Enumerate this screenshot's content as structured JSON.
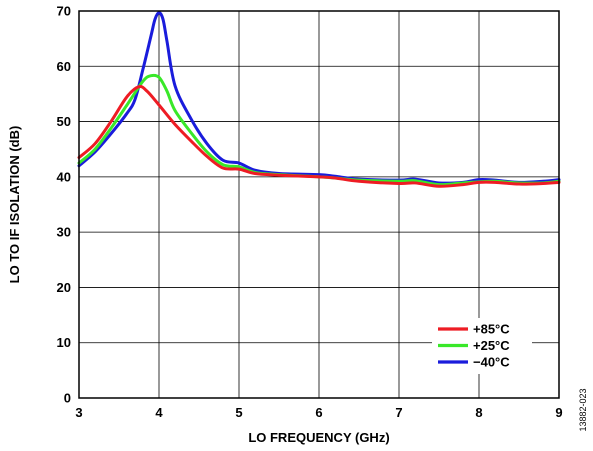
{
  "chart_data": {
    "type": "line",
    "title": "",
    "xlabel": "LO FREQUENCY (GHz)",
    "ylabel": "LO TO IF ISOLATION (dB)",
    "xlim": [
      3,
      9
    ],
    "ylim": [
      0,
      70
    ],
    "xticks": [
      "3",
      "4",
      "5",
      "6",
      "7",
      "8",
      "9"
    ],
    "yticks": [
      "0",
      "10",
      "20",
      "30",
      "40",
      "50",
      "60",
      "70"
    ],
    "grid": true,
    "legend_position": "bottom-right",
    "series": [
      {
        "name": "+85°C",
        "color": "#ee1c24",
        "x": [
          3.0,
          3.2,
          3.4,
          3.6,
          3.75,
          3.85,
          4.0,
          4.2,
          4.4,
          4.6,
          4.8,
          5.0,
          5.2,
          5.5,
          6.0,
          6.2,
          6.5,
          7.0,
          7.2,
          7.5,
          7.8,
          8.0,
          8.2,
          8.5,
          8.8,
          9.0
        ],
        "y": [
          43.5,
          46.0,
          50.0,
          54.5,
          56.3,
          55.5,
          53.0,
          49.5,
          46.5,
          43.7,
          41.6,
          41.4,
          40.6,
          40.3,
          40.0,
          39.8,
          39.2,
          38.8,
          38.9,
          38.3,
          38.6,
          39.0,
          39.0,
          38.7,
          38.8,
          39.0
        ]
      },
      {
        "name": "+25°C",
        "color": "#39e829",
        "x": [
          3.0,
          3.2,
          3.4,
          3.6,
          3.8,
          3.9,
          4.0,
          4.1,
          4.2,
          4.4,
          4.6,
          4.8,
          5.0,
          5.2,
          5.5,
          6.0,
          6.2,
          6.5,
          7.0,
          7.2,
          7.5,
          7.8,
          8.0,
          8.2,
          8.5,
          8.8,
          9.0
        ],
        "y": [
          42.5,
          45.0,
          48.8,
          53.0,
          57.3,
          58.3,
          58.0,
          55.5,
          52.0,
          48.0,
          44.5,
          42.2,
          41.8,
          40.8,
          40.4,
          40.0,
          39.8,
          39.4,
          39.2,
          39.3,
          38.6,
          38.9,
          39.1,
          39.2,
          38.9,
          38.9,
          39.2
        ]
      },
      {
        "name": "−40°C",
        "color": "#1a1cdc",
        "x": [
          3.0,
          3.2,
          3.4,
          3.6,
          3.7,
          3.8,
          3.9,
          3.95,
          4.0,
          4.05,
          4.1,
          4.2,
          4.4,
          4.6,
          4.8,
          5.0,
          5.2,
          5.5,
          6.0,
          6.2,
          6.5,
          7.0,
          7.2,
          7.5,
          7.8,
          8.0,
          8.2,
          8.5,
          8.8,
          9.0
        ],
        "y": [
          42.0,
          44.5,
          47.8,
          51.5,
          54.0,
          59.5,
          65.5,
          68.5,
          69.7,
          68.5,
          64.5,
          56.5,
          50.5,
          46.0,
          43.0,
          42.5,
          41.2,
          40.6,
          40.4,
          40.1,
          39.6,
          39.4,
          39.6,
          38.9,
          39.0,
          39.5,
          39.4,
          39.0,
          39.2,
          39.5
        ]
      }
    ]
  },
  "figure_id": "13882-023"
}
